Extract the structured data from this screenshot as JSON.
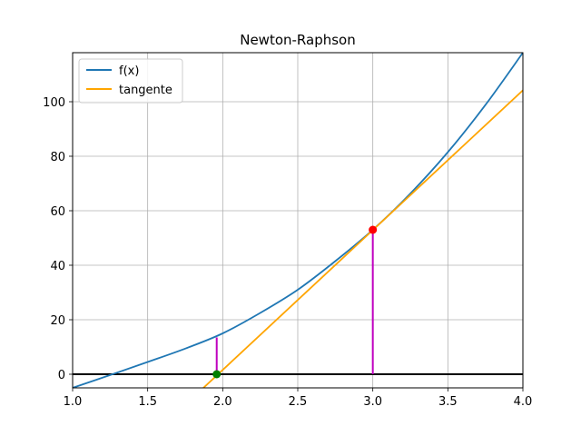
{
  "chart_data": {
    "type": "line",
    "title": "Newton-Raphson",
    "xlabel": "",
    "ylabel": "",
    "xlim": [
      1.0,
      4.0
    ],
    "ylim": [
      -5,
      118
    ],
    "grid": true,
    "legend_position": "top-left",
    "x_ticks": [
      "1.0",
      "1.5",
      "2.0",
      "2.5",
      "3.0",
      "3.5",
      "4.0"
    ],
    "y_ticks": [
      "0",
      "20",
      "40",
      "60",
      "80",
      "100"
    ],
    "series": [
      {
        "name": "f(x)",
        "color": "#1f77b4",
        "x": [
          1.0,
          1.25,
          1.5,
          1.75,
          2.0,
          2.25,
          2.5,
          2.75,
          3.0,
          3.25,
          3.5,
          3.75,
          4.0
        ],
        "y": [
          -5.0,
          -0.3,
          4.5,
          9.4,
          15.0,
          22.5,
          31.0,
          41.5,
          53.0,
          66.3,
          81.5,
          98.8,
          118.0
        ]
      },
      {
        "name": "tangente",
        "color": "#ffa500",
        "x": [
          1.85,
          4.0
        ],
        "y": [
          -6.1,
          104.2
        ]
      }
    ],
    "baseline": {
      "y": 0,
      "color": "#000000"
    },
    "verticals": [
      {
        "x": 3.0,
        "y0": 0,
        "y1": 53.0,
        "color": "#bf00bf"
      },
      {
        "x": 1.96,
        "y0": 0,
        "y1": 13.5,
        "color": "#bf00bf"
      }
    ],
    "markers": [
      {
        "x": 3.0,
        "y": 53.0,
        "color": "#ff0000"
      },
      {
        "x": 1.96,
        "y": 0,
        "color": "#008000"
      }
    ]
  }
}
